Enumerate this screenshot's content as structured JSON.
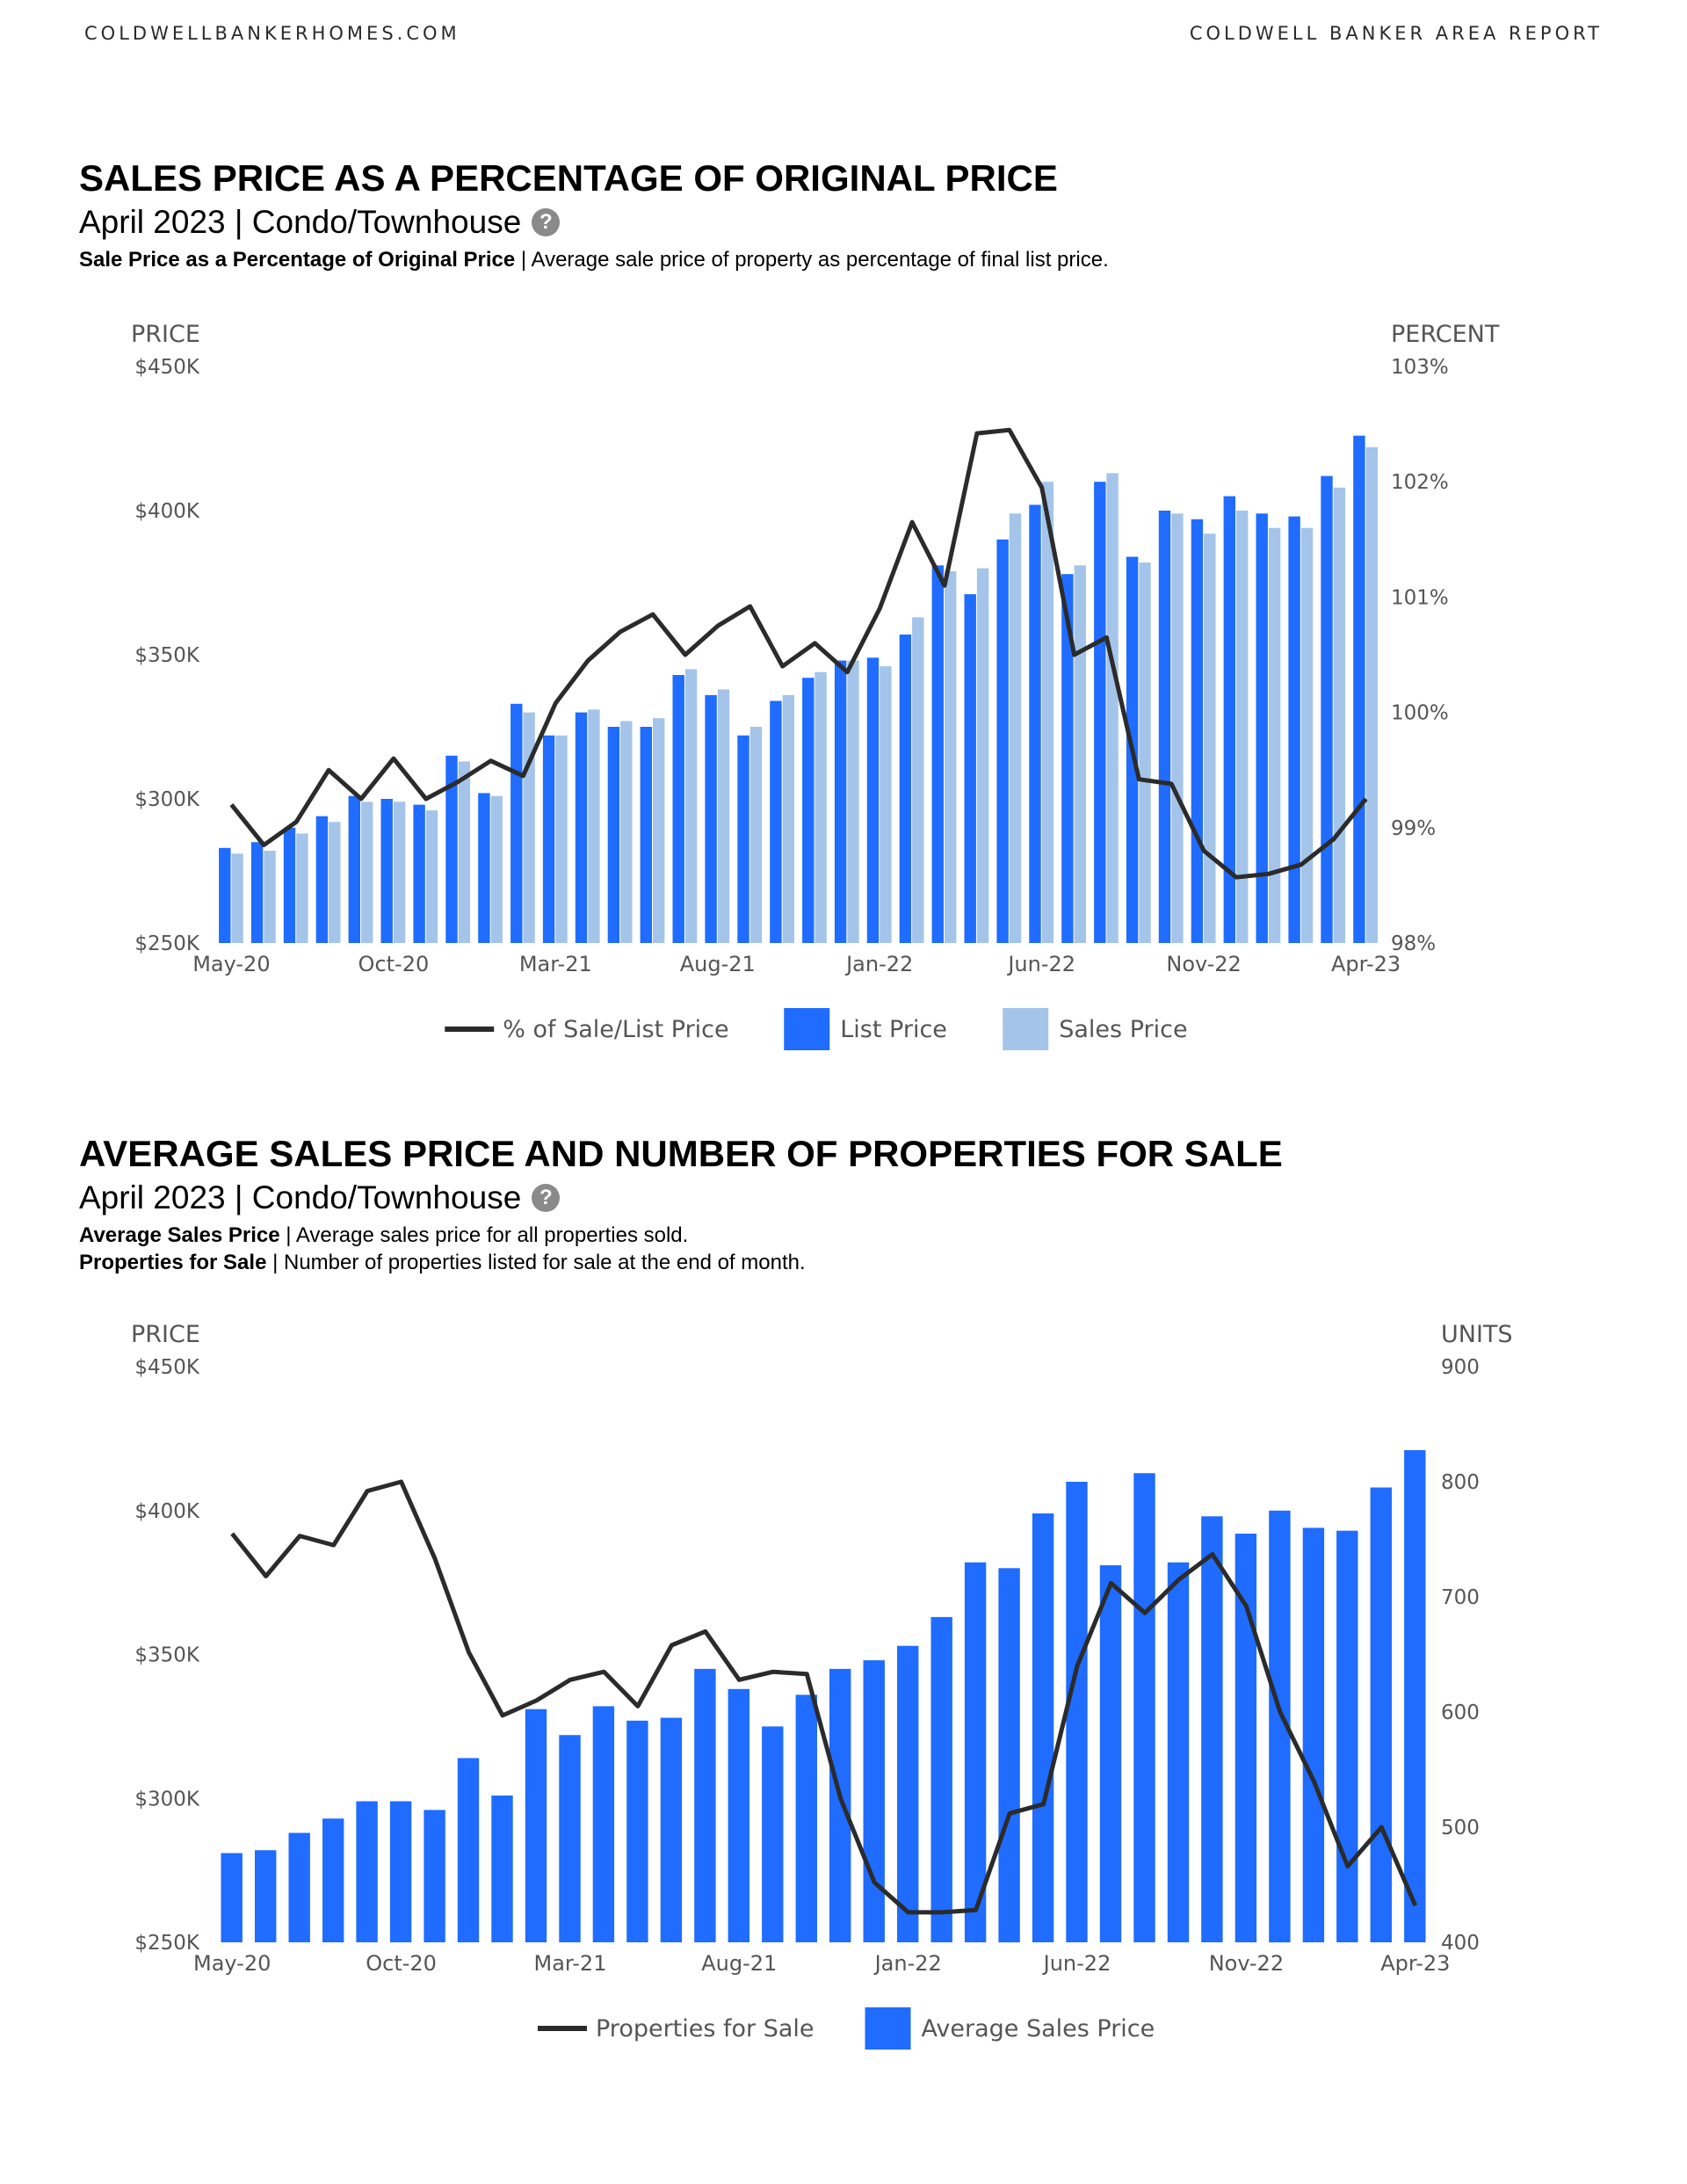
{
  "header": {
    "site": "COLDWELLBANKERHOMES.COM",
    "report": "COLDWELL BANKER AREA REPORT"
  },
  "section1": {
    "title": "SALES PRICE AS A PERCENTAGE OF ORIGINAL PRICE",
    "subtitle": "April 2023 | Condo/Townhouse",
    "def_term": "Sale Price as a Percentage of Original Price",
    "def_text": " | Average sale price of property as percentage of final list price."
  },
  "section2": {
    "title": "AVERAGE SALES PRICE AND NUMBER OF PROPERTIES FOR SALE",
    "subtitle": "April 2023 | Condo/Townhouse",
    "def1_term": "Average Sales Price",
    "def1_text": " | Average sales price for all properties sold.",
    "def2_term": "Properties for Sale",
    "def2_text": " | Number of properties listed for sale at the end of month."
  },
  "colors": {
    "list": "#1f6cff",
    "sales": "#a4c5e9",
    "line": "#2b2b2b",
    "axis_text": "#555555"
  },
  "chart_data": [
    {
      "type": "bar",
      "title": "SALES PRICE AS A PERCENTAGE OF ORIGINAL PRICE",
      "left_axis_title": "PRICE",
      "right_axis_title": "PERCENT",
      "left_ticks": [
        "$450K",
        "$400K",
        "$350K",
        "$300K",
        "$250K"
      ],
      "left_range": [
        250,
        450
      ],
      "right_ticks": [
        "103%",
        "102%",
        "101%",
        "100%",
        "99%",
        "98%"
      ],
      "right_range": [
        98,
        103
      ],
      "x_tick_labels": [
        {
          "index": 0,
          "label": "May-20"
        },
        {
          "index": 5,
          "label": "Oct-20"
        },
        {
          "index": 10,
          "label": "Mar-21"
        },
        {
          "index": 15,
          "label": "Aug-21"
        },
        {
          "index": 20,
          "label": "Jan-22"
        },
        {
          "index": 25,
          "label": "Jun-22"
        },
        {
          "index": 30,
          "label": "Nov-22"
        },
        {
          "index": 35,
          "label": "Apr-23"
        }
      ],
      "series": [
        {
          "name": "List Price",
          "kind": "bar",
          "axis": "left",
          "values": [
            283,
            285,
            290,
            294,
            301,
            300,
            298,
            315,
            302,
            333,
            322,
            330,
            325,
            325,
            343,
            336,
            322,
            334,
            342,
            348,
            349,
            357,
            381,
            371,
            390,
            402,
            378,
            410,
            384,
            400,
            397,
            405,
            399,
            398,
            412,
            426
          ]
        },
        {
          "name": "Sales Price",
          "kind": "bar",
          "axis": "left",
          "values": [
            281,
            282,
            288,
            292,
            299,
            299,
            296,
            313,
            301,
            330,
            322,
            331,
            327,
            328,
            345,
            338,
            325,
            336,
            344,
            348,
            346,
            363,
            379,
            380,
            399,
            410,
            381,
            413,
            382,
            399,
            392,
            400,
            394,
            394,
            408,
            422
          ]
        },
        {
          "name": "% of Sale/List Price",
          "kind": "line",
          "axis": "right",
          "values": [
            99.2,
            98.85,
            99.05,
            99.5,
            99.25,
            99.6,
            99.25,
            99.4,
            99.58,
            99.45,
            100.08,
            100.45,
            100.7,
            100.85,
            100.5,
            100.75,
            100.92,
            100.4,
            100.6,
            100.35,
            100.9,
            101.65,
            101.1,
            102.42,
            102.45,
            101.95,
            100.5,
            100.65,
            99.42,
            99.38,
            98.8,
            98.57,
            98.6,
            98.68,
            98.9,
            99.25
          ]
        }
      ],
      "legend": [
        "% of Sale/List Price",
        "List Price",
        "Sales Price"
      ]
    },
    {
      "type": "bar",
      "title": "AVERAGE SALES PRICE AND NUMBER OF PROPERTIES FOR SALE",
      "left_axis_title": "PRICE",
      "right_axis_title": "UNITS",
      "left_ticks": [
        "$450K",
        "$400K",
        "$350K",
        "$300K",
        "$250K"
      ],
      "left_range": [
        250,
        450
      ],
      "right_ticks": [
        "900",
        "800",
        "700",
        "600",
        "500",
        "400"
      ],
      "right_range": [
        400,
        900
      ],
      "x_tick_labels": [
        {
          "index": 0,
          "label": "May-20"
        },
        {
          "index": 5,
          "label": "Oct-20"
        },
        {
          "index": 10,
          "label": "Mar-21"
        },
        {
          "index": 15,
          "label": "Aug-21"
        },
        {
          "index": 20,
          "label": "Jan-22"
        },
        {
          "index": 25,
          "label": "Jun-22"
        },
        {
          "index": 30,
          "label": "Nov-22"
        },
        {
          "index": 35,
          "label": "Apr-23"
        }
      ],
      "series": [
        {
          "name": "Average Sales Price",
          "kind": "bar",
          "axis": "left",
          "values": [
            281,
            282,
            288,
            293,
            299,
            299,
            296,
            314,
            301,
            331,
            322,
            332,
            327,
            328,
            345,
            338,
            325,
            336,
            345,
            348,
            353,
            363,
            382,
            380,
            399,
            410,
            381,
            413,
            382,
            398,
            392,
            400,
            394,
            393,
            408,
            421
          ]
        },
        {
          "name": "Properties for Sale",
          "kind": "line",
          "axis": "right",
          "values": [
            755,
            718,
            753,
            745,
            792,
            800,
            733,
            652,
            597,
            610,
            628,
            635,
            605,
            658,
            670,
            628,
            635,
            633,
            525,
            452,
            426,
            426,
            428,
            512,
            520,
            640,
            712,
            686,
            715,
            737,
            692,
            600,
            540,
            466,
            500,
            432
          ]
        }
      ],
      "legend": [
        "Properties for Sale",
        "Average Sales Price"
      ]
    }
  ]
}
